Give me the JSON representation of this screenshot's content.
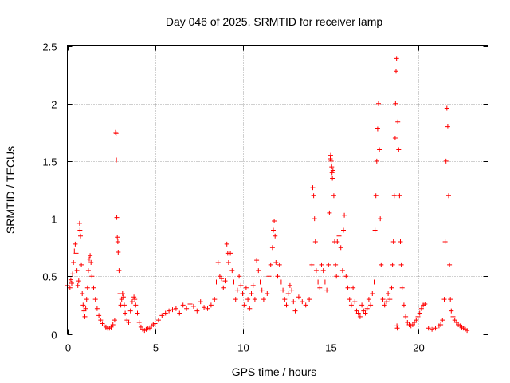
{
  "chart_data": {
    "type": "scatter",
    "title": "Day 046 of 2025, SRMTID for receiver lamp",
    "xlabel": "GPS time / hours",
    "ylabel": "SRMTID / TECUs",
    "xlim": [
      0,
      24
    ],
    "ylim": [
      0,
      2.5
    ],
    "xticks": [
      0,
      5,
      10,
      15,
      20
    ],
    "xtick_labels": [
      "0",
      "5",
      "10",
      "15",
      "20"
    ],
    "yticks": [
      0,
      0.5,
      1,
      1.5,
      2,
      2.5
    ],
    "ytick_labels": [
      "0",
      "0.5",
      "1",
      "1.5",
      "2",
      "2.5"
    ],
    "grid": true,
    "marker": "+",
    "marker_color": "#ff0000",
    "series": [
      {
        "name": "SRMTID",
        "points": [
          [
            0.0,
            0.42
          ],
          [
            0.1,
            0.45
          ],
          [
            0.15,
            0.4
          ],
          [
            0.2,
            0.47
          ],
          [
            0.25,
            0.44
          ],
          [
            0.3,
            0.52
          ],
          [
            0.35,
            0.62
          ],
          [
            0.4,
            0.72
          ],
          [
            0.45,
            0.78
          ],
          [
            0.5,
            0.7
          ],
          [
            0.55,
            0.55
          ],
          [
            0.6,
            0.42
          ],
          [
            0.65,
            0.46
          ],
          [
            0.7,
            0.96
          ],
          [
            0.72,
            0.9
          ],
          [
            0.75,
            0.85
          ],
          [
            0.8,
            0.6
          ],
          [
            0.85,
            0.35
          ],
          [
            0.9,
            0.25
          ],
          [
            0.95,
            0.2
          ],
          [
            1.0,
            0.15
          ],
          [
            1.05,
            0.22
          ],
          [
            1.1,
            0.3
          ],
          [
            1.15,
            0.4
          ],
          [
            1.2,
            0.55
          ],
          [
            1.25,
            0.65
          ],
          [
            1.3,
            0.68
          ],
          [
            1.35,
            0.62
          ],
          [
            1.4,
            0.5
          ],
          [
            1.5,
            0.4
          ],
          [
            1.6,
            0.3
          ],
          [
            1.7,
            0.22
          ],
          [
            1.8,
            0.16
          ],
          [
            1.9,
            0.12
          ],
          [
            2.0,
            0.09
          ],
          [
            2.1,
            0.07
          ],
          [
            2.2,
            0.06
          ],
          [
            2.3,
            0.05
          ],
          [
            2.4,
            0.05
          ],
          [
            2.5,
            0.06
          ],
          [
            2.6,
            0.08
          ],
          [
            2.7,
            0.12
          ],
          [
            2.75,
            1.75
          ],
          [
            2.78,
            1.74
          ],
          [
            2.8,
            1.51
          ],
          [
            2.82,
            1.01
          ],
          [
            2.85,
            0.84
          ],
          [
            2.88,
            0.8
          ],
          [
            2.9,
            0.71
          ],
          [
            2.95,
            0.55
          ],
          [
            3.0,
            0.35
          ],
          [
            3.05,
            0.25
          ],
          [
            3.1,
            0.3
          ],
          [
            3.15,
            0.35
          ],
          [
            3.2,
            0.32
          ],
          [
            3.25,
            0.25
          ],
          [
            3.3,
            0.18
          ],
          [
            3.4,
            0.12
          ],
          [
            3.5,
            0.1
          ],
          [
            3.6,
            0.2
          ],
          [
            3.7,
            0.28
          ],
          [
            3.8,
            0.32
          ],
          [
            3.85,
            0.3
          ],
          [
            3.9,
            0.25
          ],
          [
            4.0,
            0.18
          ],
          [
            4.1,
            0.1
          ],
          [
            4.2,
            0.06
          ],
          [
            4.3,
            0.04
          ],
          [
            4.4,
            0.03
          ],
          [
            4.5,
            0.04
          ],
          [
            4.6,
            0.05
          ],
          [
            4.7,
            0.05
          ],
          [
            4.8,
            0.07
          ],
          [
            4.9,
            0.08
          ],
          [
            5.0,
            0.09
          ],
          [
            5.2,
            0.12
          ],
          [
            5.4,
            0.16
          ],
          [
            5.6,
            0.18
          ],
          [
            5.8,
            0.2
          ],
          [
            6.0,
            0.21
          ],
          [
            6.2,
            0.22
          ],
          [
            6.4,
            0.18
          ],
          [
            6.6,
            0.25
          ],
          [
            6.8,
            0.22
          ],
          [
            7.0,
            0.26
          ],
          [
            7.2,
            0.24
          ],
          [
            7.4,
            0.2
          ],
          [
            7.6,
            0.28
          ],
          [
            7.8,
            0.23
          ],
          [
            8.0,
            0.22
          ],
          [
            8.2,
            0.25
          ],
          [
            8.4,
            0.3
          ],
          [
            8.5,
            0.45
          ],
          [
            8.6,
            0.62
          ],
          [
            8.7,
            0.5
          ],
          [
            8.8,
            0.48
          ],
          [
            8.9,
            0.4
          ],
          [
            9.0,
            0.46
          ],
          [
            9.1,
            0.78
          ],
          [
            9.15,
            0.7
          ],
          [
            9.2,
            0.62
          ],
          [
            9.3,
            0.7
          ],
          [
            9.4,
            0.55
          ],
          [
            9.5,
            0.45
          ],
          [
            9.6,
            0.3
          ],
          [
            9.7,
            0.38
          ],
          [
            9.8,
            0.5
          ],
          [
            9.9,
            0.42
          ],
          [
            10.0,
            0.35
          ],
          [
            10.1,
            0.25
          ],
          [
            10.2,
            0.4
          ],
          [
            10.3,
            0.3
          ],
          [
            10.4,
            0.22
          ],
          [
            10.5,
            0.35
          ],
          [
            10.6,
            0.42
          ],
          [
            10.7,
            0.3
          ],
          [
            10.8,
            0.64
          ],
          [
            10.9,
            0.55
          ],
          [
            11.0,
            0.45
          ],
          [
            11.1,
            0.38
          ],
          [
            11.2,
            0.3
          ],
          [
            11.4,
            0.35
          ],
          [
            11.5,
            0.5
          ],
          [
            11.6,
            0.6
          ],
          [
            11.7,
            0.75
          ],
          [
            11.75,
            0.9
          ],
          [
            11.8,
            0.98
          ],
          [
            11.85,
            0.85
          ],
          [
            11.9,
            0.62
          ],
          [
            12.0,
            0.5
          ],
          [
            12.1,
            0.6
          ],
          [
            12.2,
            0.45
          ],
          [
            12.3,
            0.38
          ],
          [
            12.4,
            0.3
          ],
          [
            12.5,
            0.25
          ],
          [
            12.6,
            0.35
          ],
          [
            12.7,
            0.42
          ],
          [
            12.8,
            0.38
          ],
          [
            12.9,
            0.28
          ],
          [
            13.0,
            0.2
          ],
          [
            13.2,
            0.32
          ],
          [
            13.4,
            0.28
          ],
          [
            13.6,
            0.25
          ],
          [
            13.8,
            0.3
          ],
          [
            13.95,
            0.6
          ],
          [
            14.0,
            1.27
          ],
          [
            14.05,
            1.2
          ],
          [
            14.1,
            1.0
          ],
          [
            14.15,
            0.8
          ],
          [
            14.2,
            0.55
          ],
          [
            14.3,
            0.45
          ],
          [
            14.4,
            0.4
          ],
          [
            14.5,
            0.6
          ],
          [
            14.6,
            0.55
          ],
          [
            14.7,
            0.45
          ],
          [
            14.8,
            0.38
          ],
          [
            14.9,
            0.6
          ],
          [
            14.95,
            1.05
          ],
          [
            15.0,
            1.52
          ],
          [
            15.02,
            1.55
          ],
          [
            15.05,
            1.5
          ],
          [
            15.08,
            1.45
          ],
          [
            15.1,
            1.4
          ],
          [
            15.12,
            1.35
          ],
          [
            15.15,
            1.42
          ],
          [
            15.2,
            1.2
          ],
          [
            15.25,
            0.8
          ],
          [
            15.3,
            0.6
          ],
          [
            15.35,
            0.5
          ],
          [
            15.4,
            0.8
          ],
          [
            15.5,
            0.85
          ],
          [
            15.6,
            0.75
          ],
          [
            15.7,
            0.55
          ],
          [
            15.75,
            0.9
          ],
          [
            15.8,
            1.03
          ],
          [
            15.9,
            0.5
          ],
          [
            16.0,
            0.4
          ],
          [
            16.1,
            0.3
          ],
          [
            16.2,
            0.25
          ],
          [
            16.3,
            0.4
          ],
          [
            16.4,
            0.28
          ],
          [
            16.5,
            0.2
          ],
          [
            16.6,
            0.18
          ],
          [
            16.7,
            0.15
          ],
          [
            16.8,
            0.25
          ],
          [
            16.9,
            0.2
          ],
          [
            17.0,
            0.18
          ],
          [
            17.1,
            0.22
          ],
          [
            17.2,
            0.3
          ],
          [
            17.3,
            0.25
          ],
          [
            17.4,
            0.35
          ],
          [
            17.5,
            0.45
          ],
          [
            17.55,
            0.9
          ],
          [
            17.6,
            1.2
          ],
          [
            17.65,
            1.5
          ],
          [
            17.7,
            1.78
          ],
          [
            17.75,
            2.0
          ],
          [
            17.8,
            1.6
          ],
          [
            17.85,
            1.0
          ],
          [
            17.9,
            0.6
          ],
          [
            18.0,
            0.3
          ],
          [
            18.1,
            0.25
          ],
          [
            18.2,
            0.28
          ],
          [
            18.3,
            0.35
          ],
          [
            18.4,
            0.3
          ],
          [
            18.5,
            0.4
          ],
          [
            18.55,
            0.6
          ],
          [
            18.6,
            0.8
          ],
          [
            18.65,
            1.2
          ],
          [
            18.7,
            1.7
          ],
          [
            18.72,
            2.0
          ],
          [
            18.75,
            2.28
          ],
          [
            18.78,
            2.39
          ],
          [
            18.8,
            0.07
          ],
          [
            18.82,
            0.05
          ],
          [
            18.85,
            1.84
          ],
          [
            18.9,
            1.6
          ],
          [
            18.95,
            1.2
          ],
          [
            19.0,
            0.8
          ],
          [
            19.05,
            0.6
          ],
          [
            19.1,
            0.4
          ],
          [
            19.2,
            0.25
          ],
          [
            19.3,
            0.15
          ],
          [
            19.4,
            0.1
          ],
          [
            19.5,
            0.08
          ],
          [
            19.6,
            0.07
          ],
          [
            19.7,
            0.08
          ],
          [
            19.8,
            0.1
          ],
          [
            19.9,
            0.12
          ],
          [
            20.0,
            0.15
          ],
          [
            20.1,
            0.18
          ],
          [
            20.2,
            0.22
          ],
          [
            20.3,
            0.25
          ],
          [
            20.4,
            0.26
          ],
          [
            20.6,
            0.05
          ],
          [
            20.8,
            0.04
          ],
          [
            21.0,
            0.05
          ],
          [
            21.2,
            0.07
          ],
          [
            21.3,
            0.08
          ],
          [
            21.4,
            0.12
          ],
          [
            21.5,
            0.3
          ],
          [
            21.55,
            0.8
          ],
          [
            21.6,
            1.5
          ],
          [
            21.65,
            1.96
          ],
          [
            21.7,
            1.8
          ],
          [
            21.75,
            1.2
          ],
          [
            21.8,
            0.6
          ],
          [
            21.85,
            0.3
          ],
          [
            21.9,
            0.2
          ],
          [
            22.0,
            0.15
          ],
          [
            22.1,
            0.12
          ],
          [
            22.2,
            0.1
          ],
          [
            22.3,
            0.08
          ],
          [
            22.4,
            0.07
          ],
          [
            22.5,
            0.06
          ],
          [
            22.6,
            0.05
          ],
          [
            22.7,
            0.04
          ],
          [
            22.8,
            0.03
          ]
        ]
      }
    ]
  }
}
